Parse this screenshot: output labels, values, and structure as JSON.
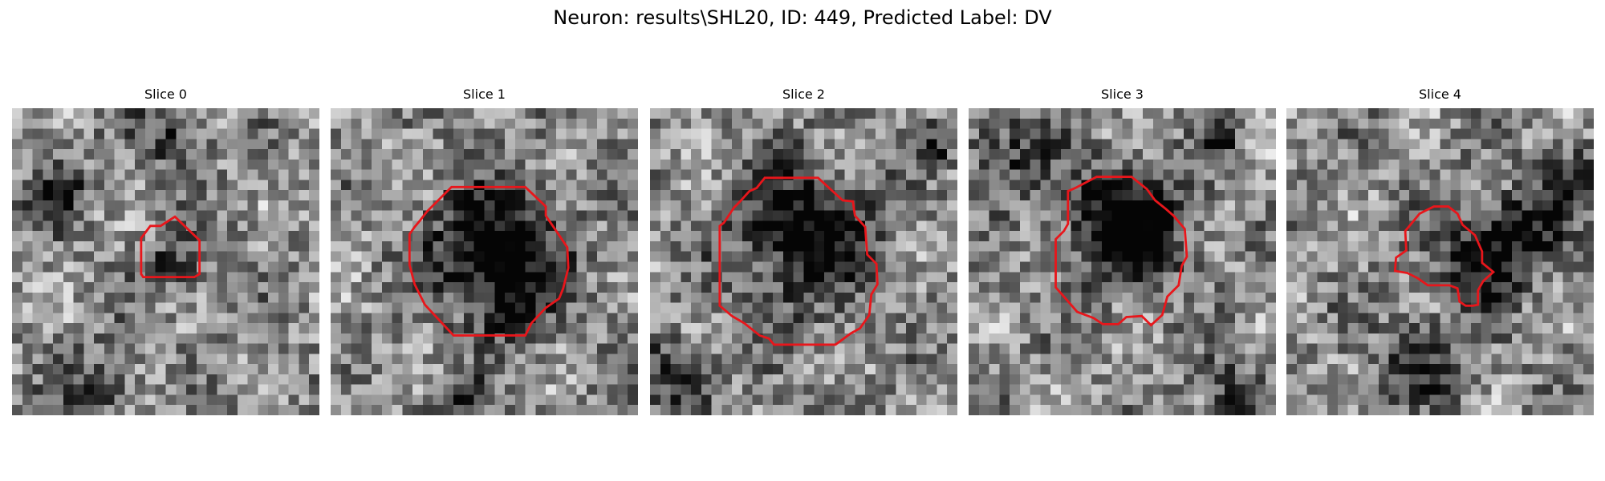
{
  "figure": {
    "title": "Neuron: results\\SHL20, ID: 449, Predicted Label: DV"
  },
  "panels": [
    {
      "title": "Slice 0",
      "seed": 11,
      "darkness": 0.35
    },
    {
      "title": "Slice 1",
      "seed": 23,
      "darkness": 0.7
    },
    {
      "title": "Slice 2",
      "seed": 37,
      "darkness": 0.6
    },
    {
      "title": "Slice 3",
      "seed": 51,
      "darkness": 0.75
    },
    {
      "title": "Slice 4",
      "seed": 67,
      "darkness": 0.55
    }
  ],
  "colors": {
    "contour": "#e8161b",
    "background": "#ffffff"
  }
}
